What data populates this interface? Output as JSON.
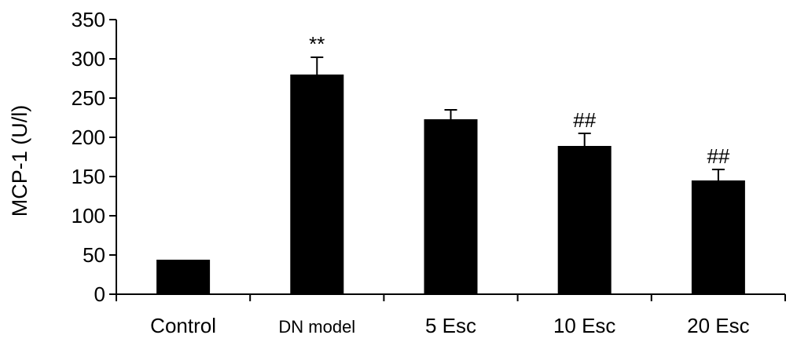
{
  "chart_data": {
    "type": "bar",
    "title": "",
    "xlabel": "",
    "ylabel": "MCP-1 (U/l)",
    "ylim": [
      0,
      350
    ],
    "yticks": [
      "0",
      "50",
      "100",
      "150",
      "200",
      "250",
      "300",
      "350"
    ],
    "grid": false,
    "categories": [
      "Control",
      "DN model",
      "5 Esc",
      "10 Esc",
      "20 Esc"
    ],
    "values": [
      44,
      280,
      223,
      189,
      145
    ],
    "errors": [
      0,
      22,
      12,
      16,
      14
    ],
    "annotations": [
      "",
      "**",
      "",
      "##",
      "##"
    ],
    "colors": {
      "bar": "#000000",
      "axis": "#000000",
      "background": "#ffffff"
    }
  }
}
